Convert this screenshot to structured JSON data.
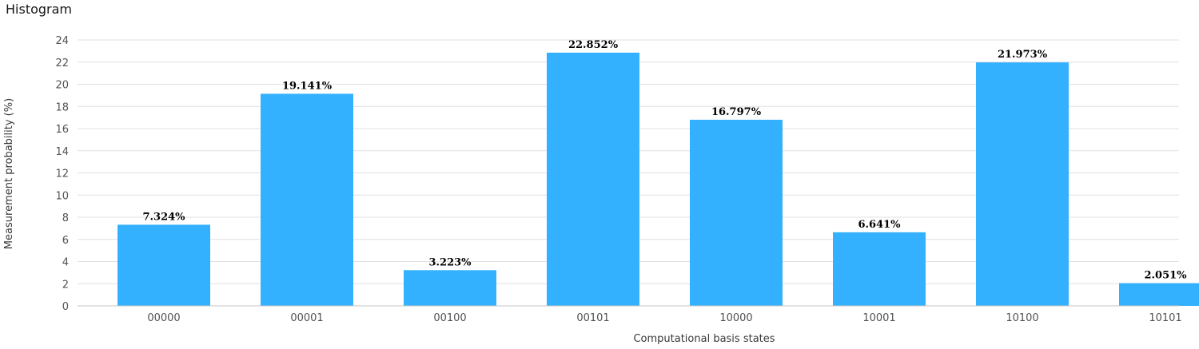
{
  "header": {
    "title": "Histogram"
  },
  "chart_data": {
    "type": "bar",
    "title": "",
    "xlabel": "Computational basis states",
    "ylabel": "Measurement probability (%)",
    "categories": [
      "00000",
      "00001",
      "00100",
      "00101",
      "10000",
      "10001",
      "10100",
      "10101"
    ],
    "values": [
      7.324,
      19.141,
      3.223,
      22.852,
      16.797,
      6.641,
      21.973,
      2.051
    ],
    "data_labels": [
      "7.324%",
      "19.141%",
      "3.223%",
      "22.852%",
      "16.797%",
      "6.641%",
      "21.973%",
      "2.051%"
    ],
    "ylim": [
      0,
      24
    ],
    "yticks": [
      0,
      2,
      4,
      6,
      8,
      10,
      12,
      14,
      16,
      18,
      20,
      22,
      24
    ],
    "grid": true,
    "bar_color": "#33b1ff"
  }
}
